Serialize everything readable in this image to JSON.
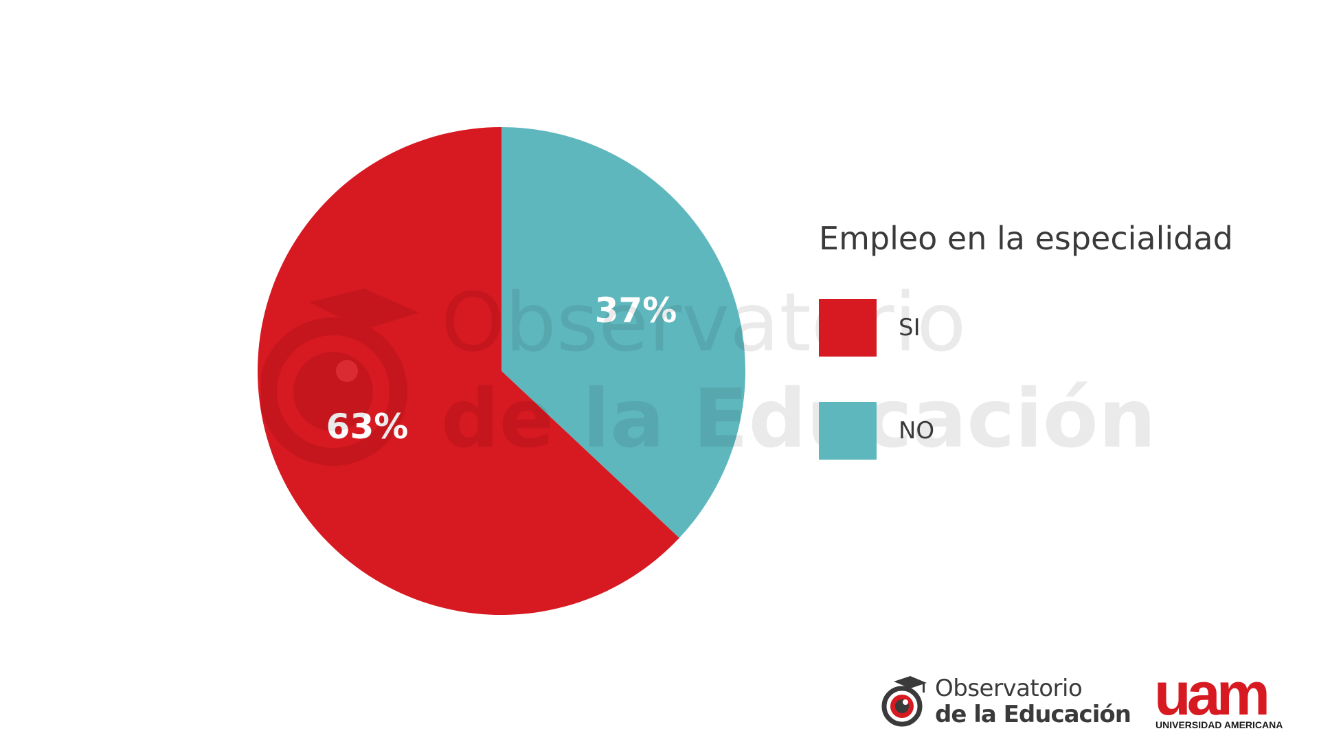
{
  "chart_data": {
    "type": "pie",
    "legend_title": "Empleo en la especialidad",
    "legend_position": "right",
    "slices": [
      {
        "label": "SI",
        "value": 63,
        "display": "63%",
        "color": "#d71921"
      },
      {
        "label": "NO",
        "value": 37,
        "display": "37%",
        "color": "#5fb7be"
      }
    ]
  },
  "watermark": {
    "line1": "Observatorio",
    "line2": "de la Educación"
  },
  "footer": {
    "observatorio_line1": "Observatorio",
    "observatorio_line2": "de la Educación",
    "uam_mark": "uam",
    "uam_name": "UNIVERSIDAD AMERICANA",
    "brand_red": "#d71921",
    "text_gray": "#3a3a3a"
  }
}
